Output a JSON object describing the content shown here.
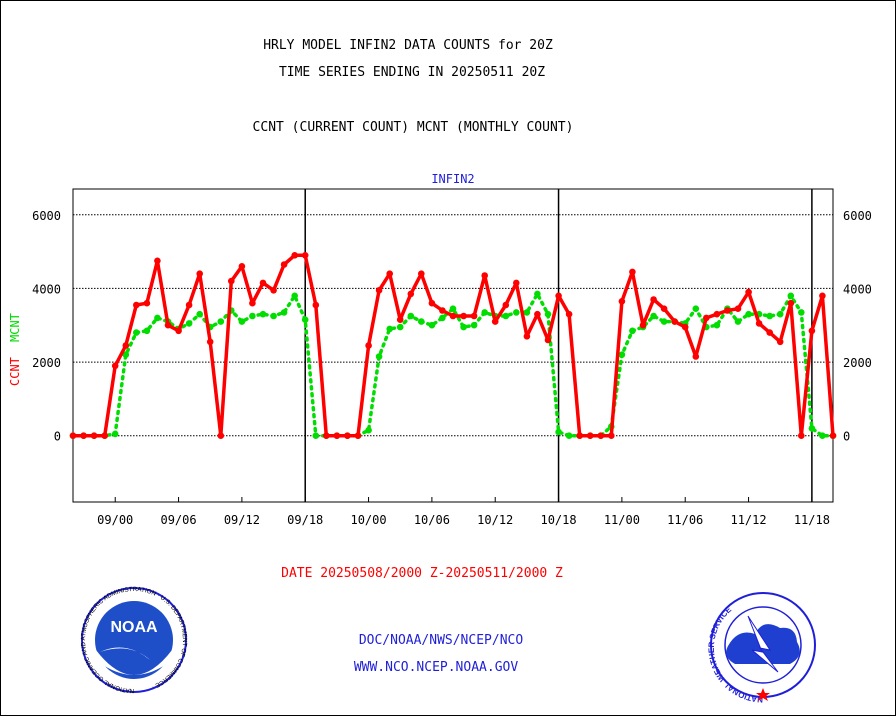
{
  "header": {
    "title_line1": "HRLY MODEL INFIN2 DATA COUNTS for 20Z",
    "title_line2": "TIME SERIES ENDING IN 20250511 20Z",
    "subtitle": "CCNT (CURRENT COUNT) MCNT (MONTHLY COUNT)"
  },
  "footer": {
    "date_range": "DATE 20250508/2000 Z-20250511/2000 Z",
    "link1": "DOC/NOAA/NWS/NCEP/NCO",
    "link2": "WWW.NCO.NCEP.NOAA.GOV"
  },
  "logos": {
    "noaa_text": "NOAA",
    "noaa_ring": "NATIONAL OCEANIC AND ATMOSPHERIC ADMINISTRATION · U.S. DEPARTMENT OF COMMERCE ·",
    "nws_ring": "NATIONAL WEATHER SERVICE"
  },
  "colors": {
    "ccnt": "#ff0000",
    "mcnt": "#00dd00",
    "title_blue": "#1f1fd8"
  },
  "chart_data": {
    "type": "line",
    "title": "INFIN2",
    "ylabel_ccnt": "CCNT",
    "ylabel_mcnt": "MCNT",
    "ylim": [
      -1800,
      6700
    ],
    "yticks": [
      0,
      2000,
      4000,
      6000
    ],
    "ytick_labels": [
      "0",
      "2000",
      "4000",
      "6000"
    ],
    "xlim": [
      -4,
      68
    ],
    "xticks": [
      0,
      6,
      12,
      18,
      24,
      30,
      36,
      42,
      48,
      54,
      60,
      66
    ],
    "xtick_labels": [
      "09/00",
      "09/06",
      "09/12",
      "09/18",
      "10/00",
      "10/06",
      "10/12",
      "10/18",
      "11/00",
      "11/06",
      "11/12",
      "11/18"
    ],
    "day_separators": [
      18,
      42,
      66
    ],
    "grid": "horizontal dotted",
    "x": [
      -4,
      -3,
      -2,
      -1,
      0,
      1,
      2,
      3,
      4,
      5,
      6,
      7,
      8,
      9,
      10,
      11,
      12,
      13,
      14,
      15,
      16,
      17,
      18,
      19,
      20,
      21,
      22,
      23,
      24,
      25,
      26,
      27,
      28,
      29,
      30,
      31,
      32,
      33,
      34,
      35,
      36,
      37,
      38,
      39,
      40,
      41,
      42,
      43,
      44,
      45,
      46,
      47,
      48,
      49,
      50,
      51,
      52,
      53,
      54,
      55,
      56,
      57,
      58,
      59,
      60,
      61,
      62,
      63,
      64,
      65,
      66,
      67,
      68
    ],
    "series": [
      {
        "name": "CCNT",
        "color": "#ff0000",
        "values": [
          0,
          0,
          0,
          0,
          1900,
          2450,
          3550,
          3600,
          4750,
          3000,
          2850,
          3550,
          4400,
          2550,
          0,
          4200,
          4600,
          3600,
          4150,
          3950,
          4650,
          4900,
          4900,
          3550,
          0,
          0,
          0,
          0,
          2450,
          3950,
          4400,
          3150,
          3850,
          4400,
          3600,
          3400,
          3250,
          3250,
          3250,
          4350,
          3100,
          3550,
          4150,
          2700,
          3300,
          2600,
          3800,
          3300,
          0,
          0,
          0,
          0,
          3650,
          4450,
          3000,
          3700,
          3450,
          3100,
          2950,
          2150,
          3200,
          3300,
          3400,
          3450,
          3900,
          3050,
          2800,
          2550,
          3600,
          0,
          2850,
          3800,
          0
        ]
      },
      {
        "name": "MCNT",
        "color": "#00dd00",
        "values": [
          0,
          0,
          0,
          0,
          50,
          2200,
          2800,
          2850,
          3200,
          3100,
          2900,
          3050,
          3300,
          2950,
          3100,
          3400,
          3100,
          3250,
          3300,
          3250,
          3350,
          3800,
          3150,
          0,
          0,
          0,
          0,
          0,
          150,
          2150,
          2900,
          2950,
          3250,
          3100,
          3000,
          3200,
          3450,
          2950,
          3000,
          3350,
          3250,
          3250,
          3350,
          3350,
          3850,
          3300,
          100,
          0,
          0,
          0,
          0,
          250,
          2200,
          2850,
          2950,
          3250,
          3100,
          3100,
          3050,
          3450,
          2950,
          3000,
          3450,
          3100,
          3300,
          3300,
          3250,
          3300,
          3800,
          3350,
          200,
          0,
          0
        ]
      }
    ]
  }
}
